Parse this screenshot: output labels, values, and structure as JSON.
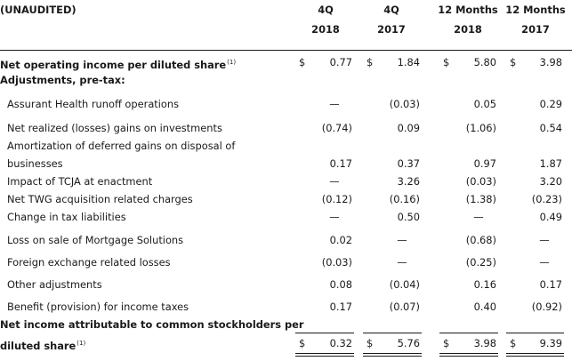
{
  "header": {
    "unaudited": "(UNAUDITED)",
    "columns": [
      {
        "top": "4Q",
        "bottom": "2018"
      },
      {
        "top": "4Q",
        "bottom": "2017"
      },
      {
        "top": "12 Months",
        "bottom": "2018"
      },
      {
        "top": "12 Months",
        "bottom": "2017"
      }
    ]
  },
  "currency_symbol": "$",
  "footnote_marker": "(1)",
  "rows": [
    {
      "label": "Net operating income per diluted share",
      "footnote": true,
      "bold": true,
      "dollar": true,
      "values": [
        "0.77",
        "1.84",
        "5.80",
        "3.98"
      ]
    },
    {
      "label": "Adjustments, pre-tax:",
      "bold": true,
      "section": true
    },
    {
      "label": "Assurant Health runoff operations",
      "indent": true,
      "values": [
        "—",
        "(0.03)",
        "0.05",
        "0.29"
      ]
    },
    {
      "label": "Net realized (losses) gains on investments",
      "indent": true,
      "values": [
        "(0.74)",
        "0.09",
        "(1.06)",
        "0.54"
      ]
    },
    {
      "label": "Amortization of deferred gains on disposal of",
      "indent": true,
      "continues": true
    },
    {
      "label": "businesses",
      "indent": true,
      "values": [
        "0.17",
        "0.37",
        "0.97",
        "1.87"
      ]
    },
    {
      "label": "Impact of TCJA at enactment",
      "indent": true,
      "values": [
        "—",
        "3.26",
        "(0.03)",
        "3.20"
      ]
    },
    {
      "label": "Net TWG acquisition related charges",
      "indent": true,
      "values": [
        "(0.12)",
        "(0.16)",
        "(1.38)",
        "(0.23)"
      ]
    },
    {
      "label": "Change in tax liabilities",
      "indent": true,
      "values": [
        "—",
        "0.50",
        "—",
        "0.49"
      ]
    },
    {
      "label": "Loss on sale of Mortgage Solutions",
      "indent": true,
      "values": [
        "0.02",
        "—",
        "(0.68)",
        "—"
      ]
    },
    {
      "label": "Foreign exchange related losses",
      "indent": true,
      "values": [
        "(0.03)",
        "—",
        "(0.25)",
        "—"
      ]
    },
    {
      "label": "Other adjustments",
      "indent": true,
      "values": [
        "0.08",
        "(0.04)",
        "0.16",
        "0.17"
      ]
    },
    {
      "label": "Benefit (provision) for income taxes",
      "indent": true,
      "values": [
        "0.17",
        "(0.07)",
        "0.40",
        "(0.92)"
      ]
    },
    {
      "label": "Net income attributable to common stockholders per",
      "bold": true,
      "continues": true
    },
    {
      "label": "diluted share",
      "footnote": true,
      "bold": true,
      "dollar": true,
      "values": [
        "0.32",
        "5.76",
        "3.98",
        "9.39"
      ]
    }
  ]
}
